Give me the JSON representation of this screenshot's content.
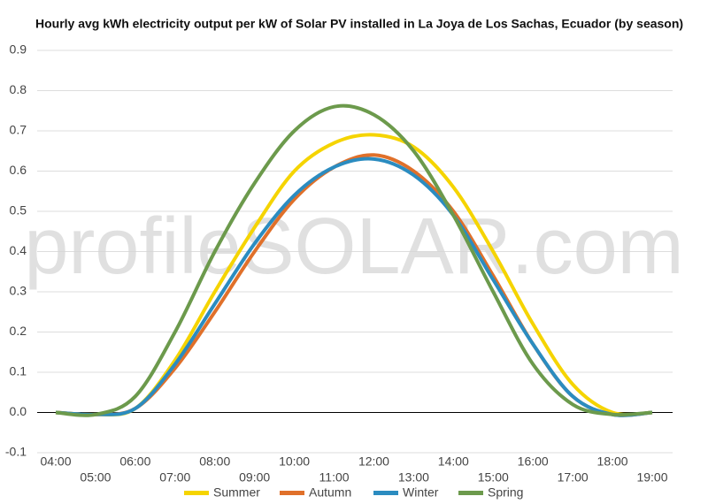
{
  "chart_data": {
    "type": "line",
    "title": "Hourly avg kWh electricity output per kW of Solar PV installed in La Joya de Los Sachas, Ecuador (by season)",
    "watermark": "profileSOLAR.com",
    "categories": [
      "04:00",
      "05:00",
      "06:00",
      "07:00",
      "08:00",
      "09:00",
      "10:00",
      "11:00",
      "12:00",
      "13:00",
      "14:00",
      "15:00",
      "16:00",
      "17:00",
      "18:00",
      "19:00"
    ],
    "series": [
      {
        "name": "Summer",
        "color": "#f5d400",
        "values": [
          0,
          -0.005,
          0.01,
          0.13,
          0.3,
          0.46,
          0.6,
          0.67,
          0.69,
          0.66,
          0.56,
          0.4,
          0.22,
          0.07,
          0.0,
          0
        ]
      },
      {
        "name": "Autumn",
        "color": "#e0702a",
        "values": [
          0,
          -0.005,
          0.01,
          0.11,
          0.25,
          0.4,
          0.53,
          0.61,
          0.64,
          0.6,
          0.5,
          0.34,
          0.17,
          0.04,
          -0.005,
          0
        ]
      },
      {
        "name": "Winter",
        "color": "#2b8cc0",
        "values": [
          0,
          -0.005,
          0.01,
          0.12,
          0.27,
          0.42,
          0.54,
          0.61,
          0.63,
          0.59,
          0.49,
          0.33,
          0.17,
          0.04,
          -0.005,
          0
        ]
      },
      {
        "name": "Spring",
        "color": "#6c9a4c",
        "values": [
          0,
          -0.005,
          0.04,
          0.2,
          0.4,
          0.57,
          0.7,
          0.76,
          0.74,
          0.65,
          0.49,
          0.3,
          0.12,
          0.02,
          -0.005,
          0
        ]
      }
    ],
    "ylim": [
      -0.1,
      0.9
    ],
    "yticks": [
      -0.1,
      {
        "value": 0,
        "label": "0.0"
      },
      0.1,
      0.2,
      0.3,
      0.4,
      0.5,
      0.6,
      0.7,
      0.8,
      0.9
    ],
    "grid": true,
    "legend": "bottom"
  }
}
